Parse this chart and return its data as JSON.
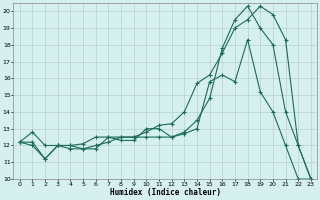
{
  "xlabel": "Humidex (Indice chaleur)",
  "bg_color": "#d6f0f0",
  "grid_color": "#b0c8c8",
  "line_color": "#1a6b5a",
  "xlim": [
    -0.5,
    23.5
  ],
  "ylim": [
    10,
    20.5
  ],
  "yticks": [
    10,
    11,
    12,
    13,
    14,
    15,
    16,
    17,
    18,
    19,
    20
  ],
  "xticks": [
    0,
    1,
    2,
    3,
    4,
    5,
    6,
    7,
    8,
    9,
    10,
    11,
    12,
    13,
    14,
    15,
    16,
    17,
    18,
    19,
    20,
    21,
    22,
    23
  ],
  "line1_x": [
    0,
    1,
    2,
    3,
    4,
    5,
    6,
    7,
    8,
    9,
    10,
    11,
    12,
    13,
    14,
    15,
    16,
    17,
    18,
    19,
    20,
    21,
    22,
    23
  ],
  "line1_y": [
    12.2,
    12.8,
    12.0,
    12.0,
    12.0,
    12.1,
    12.5,
    12.5,
    12.3,
    12.3,
    13.0,
    13.0,
    12.5,
    12.7,
    13.0,
    15.8,
    16.2,
    15.8,
    18.3,
    15.2,
    14.0,
    12.0,
    10.0,
    10.0
  ],
  "line2_x": [
    0,
    1,
    2,
    3,
    4,
    5,
    6,
    7,
    8,
    9,
    10,
    11,
    12,
    13,
    14,
    15,
    16,
    17,
    18,
    19,
    20,
    21,
    22,
    23
  ],
  "line2_y": [
    12.2,
    12.2,
    11.2,
    12.0,
    11.8,
    11.8,
    12.0,
    12.2,
    12.5,
    12.5,
    12.8,
    13.2,
    13.3,
    14.0,
    15.7,
    16.2,
    17.5,
    19.0,
    19.5,
    20.3,
    19.8,
    18.3,
    12.0,
    10.0
  ],
  "line3_x": [
    0,
    1,
    2,
    3,
    4,
    5,
    6,
    7,
    8,
    9,
    10,
    11,
    12,
    13,
    14,
    15,
    16,
    17,
    18,
    19,
    20,
    21,
    22,
    23
  ],
  "line3_y": [
    12.2,
    12.0,
    11.2,
    12.0,
    12.0,
    11.8,
    11.8,
    12.5,
    12.5,
    12.5,
    12.5,
    12.5,
    12.5,
    12.8,
    13.5,
    14.8,
    17.8,
    19.5,
    20.3,
    19.0,
    18.0,
    14.0,
    12.0,
    10.0
  ]
}
